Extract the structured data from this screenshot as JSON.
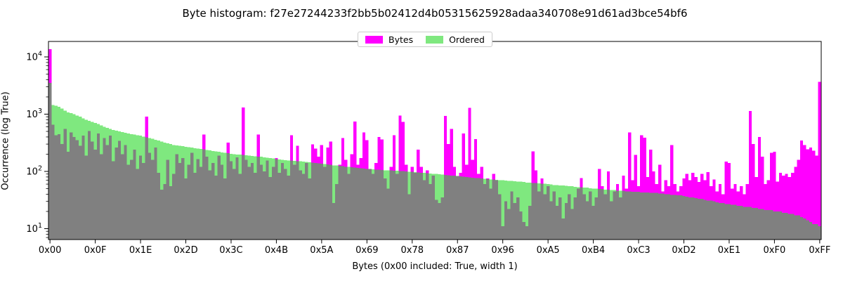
{
  "title": "Byte histogram: f27e27244233f2bb5b02412d4b05315625928adaa340708e91d61ad3bce54bf6",
  "legend": {
    "items": [
      {
        "label": "Bytes",
        "color": "#FF00FF"
      },
      {
        "label": "Ordered",
        "color": "#7FE87F"
      }
    ],
    "position": "upper center"
  },
  "axes": {
    "x_label": "Bytes (0x00 included: True, width 1)",
    "y_label": "Occurrence (log True)",
    "x_tick_positions": [
      0,
      15,
      30,
      45,
      60,
      75,
      90,
      105,
      120,
      135,
      150,
      165,
      180,
      195,
      210,
      225,
      240,
      255
    ],
    "x_tick_labels": [
      "0x00",
      "0x0F",
      "0x1E",
      "0x2D",
      "0x3C",
      "0x4B",
      "0x5A",
      "0x69",
      "0x78",
      "0x87",
      "0x96",
      "0xA5",
      "0xB4",
      "0xC3",
      "0xD2",
      "0xE1",
      "0xF0",
      "0xFF"
    ],
    "y_tick_exponents": [
      1,
      2,
      3,
      4
    ],
    "y_tick_labels": [
      "10¹",
      "10²",
      "10³",
      "10⁴"
    ]
  },
  "chart_data": {
    "type": "bar",
    "x_range": [
      0,
      255
    ],
    "bar_width": 1,
    "y_scale": "log",
    "ylim": [
      6.5,
      18600
    ],
    "grid": false,
    "legend_position": "upper center",
    "overlap_color": "#808080",
    "series": [
      {
        "name": "Bytes",
        "color": "#FF00FF",
        "values": [
          13600,
          650,
          430,
          450,
          300,
          550,
          220,
          480,
          400,
          350,
          280,
          420,
          190,
          510,
          330,
          240,
          460,
          200,
          380,
          290,
          420,
          150,
          260,
          340,
          200,
          290,
          130,
          160,
          240,
          110,
          190,
          140,
          900,
          210,
          160,
          260,
          95,
          48,
          60,
          160,
          55,
          90,
          200,
          140,
          170,
          75,
          130,
          210,
          95,
          165,
          120,
          440,
          180,
          105,
          140,
          85,
          190,
          130,
          75,
          320,
          150,
          110,
          175,
          90,
          1300,
          160,
          120,
          140,
          95,
          440,
          130,
          100,
          155,
          80,
          120,
          170,
          95,
          140,
          110,
          85,
          430,
          130,
          280,
          105,
          90,
          140,
          75,
          295,
          250,
          180,
          290,
          120,
          260,
          330,
          28,
          60,
          130,
          380,
          160,
          90,
          200,
          740,
          130,
          170,
          480,
          350,
          110,
          90,
          140,
          400,
          360,
          75,
          50,
          120,
          430,
          90,
          950,
          730,
          130,
          40,
          120,
          95,
          240,
          120,
          70,
          105,
          60,
          85,
          32,
          28,
          35,
          930,
          300,
          550,
          120,
          83,
          95,
          460,
          130,
          1290,
          160,
          365,
          90,
          120,
          60,
          75,
          50,
          90,
          70,
          40,
          11,
          30,
          22,
          45,
          28,
          35,
          20,
          13,
          11,
          25,
          224,
          105,
          45,
          75,
          40,
          55,
          30,
          45,
          25,
          35,
          15,
          28,
          40,
          22,
          35,
          50,
          76,
          40,
          30,
          45,
          25,
          35,
          110,
          55,
          40,
          100,
          30,
          45,
          60,
          35,
          85,
          50,
          480,
          70,
          195,
          55,
          430,
          390,
          80,
          240,
          100,
          60,
          130,
          45,
          70,
          55,
          290,
          60,
          45,
          55,
          75,
          90,
          70,
          95,
          80,
          65,
          90,
          70,
          97,
          55,
          72,
          45,
          60,
          40,
          148,
          140,
          50,
          60,
          45,
          55,
          40,
          60,
          1130,
          300,
          80,
          400,
          180,
          60,
          70,
          210,
          220,
          66,
          95,
          85,
          90,
          80,
          95,
          120,
          160,
          345,
          290,
          245,
          260,
          230,
          190,
          3650
        ]
      },
      {
        "name": "Ordered",
        "color": "#7FE87F",
        "values": [
          3500,
          1450,
          1400,
          1350,
          1250,
          1150,
          1080,
          1040,
          1000,
          950,
          900,
          850,
          800,
          760,
          730,
          700,
          670,
          635,
          600,
          575,
          550,
          530,
          515,
          500,
          485,
          470,
          460,
          450,
          440,
          430,
          420,
          407,
          395,
          382,
          370,
          357,
          345,
          333,
          320,
          310,
          300,
          290,
          285,
          280,
          276,
          270,
          265,
          260,
          255,
          251,
          246,
          242,
          237,
          233,
          228,
          224,
          220,
          215,
          211,
          207,
          203,
          200,
          198,
          196,
          194,
          191,
          189,
          187,
          184,
          182,
          180,
          177,
          174,
          171,
          168,
          165,
          162,
          160,
          158,
          156,
          154,
          152,
          151,
          150,
          148,
          146,
          144,
          142,
          140,
          138,
          136,
          134,
          132,
          130,
          128,
          127,
          125,
          123,
          121,
          120,
          118,
          117,
          115,
          114,
          112,
          111,
          110,
          109,
          108,
          107,
          106,
          105,
          104,
          104,
          103,
          103,
          102,
          101,
          100,
          99,
          98,
          97,
          96,
          95,
          94,
          93,
          92,
          91,
          90,
          89,
          88,
          87,
          86,
          85,
          84,
          83,
          82,
          81,
          80,
          79,
          78,
          77,
          76,
          75,
          74,
          73,
          72,
          72,
          71,
          70,
          70,
          69,
          68,
          68,
          67,
          66,
          66,
          65,
          64,
          64,
          63,
          63,
          62,
          61,
          61,
          60,
          59,
          58,
          58,
          57,
          57,
          56,
          55,
          55,
          54,
          53,
          53,
          52,
          52,
          51,
          50,
          50,
          49,
          49,
          48,
          48,
          47,
          47,
          46,
          46,
          46,
          45,
          45,
          44,
          44,
          44,
          43,
          43,
          43,
          42,
          42,
          42,
          41,
          41,
          40,
          40,
          39,
          39,
          38,
          38,
          37,
          36,
          35,
          35,
          34,
          33,
          33,
          32,
          31,
          31,
          30,
          29,
          28,
          28,
          27,
          27,
          26,
          26,
          25,
          25,
          24,
          24,
          24,
          23,
          23,
          22,
          22,
          21,
          21,
          21,
          20,
          20,
          20,
          19,
          19,
          18,
          18,
          17,
          17,
          16,
          15,
          14,
          13,
          12,
          12,
          11
        ]
      }
    ]
  }
}
